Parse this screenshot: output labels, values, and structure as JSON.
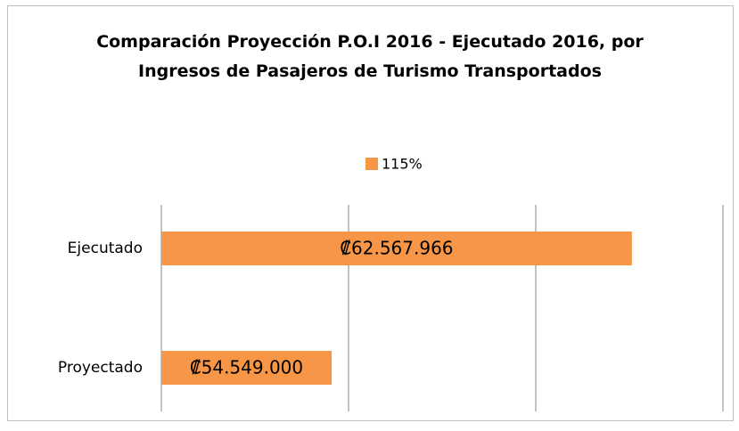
{
  "chart_data": {
    "type": "barh",
    "title": "Comparación Proyección P.O.I 2016 - Ejecutado 2016, por Ingresos de Pasajeros de Turismo Transportados",
    "categories": [
      "Ejecutado",
      "Proyectado"
    ],
    "series": [
      {
        "name": "115%",
        "color": "#f79646",
        "values": [
          62567966,
          54549000
        ],
        "value_labels": [
          "₡62.567.966",
          "₡54.549.000"
        ]
      }
    ],
    "xlim": [
      50000000,
      65000000
    ],
    "xticks": [
      50000000,
      55000000,
      60000000,
      65000000
    ],
    "grid": true,
    "legend": "top"
  }
}
